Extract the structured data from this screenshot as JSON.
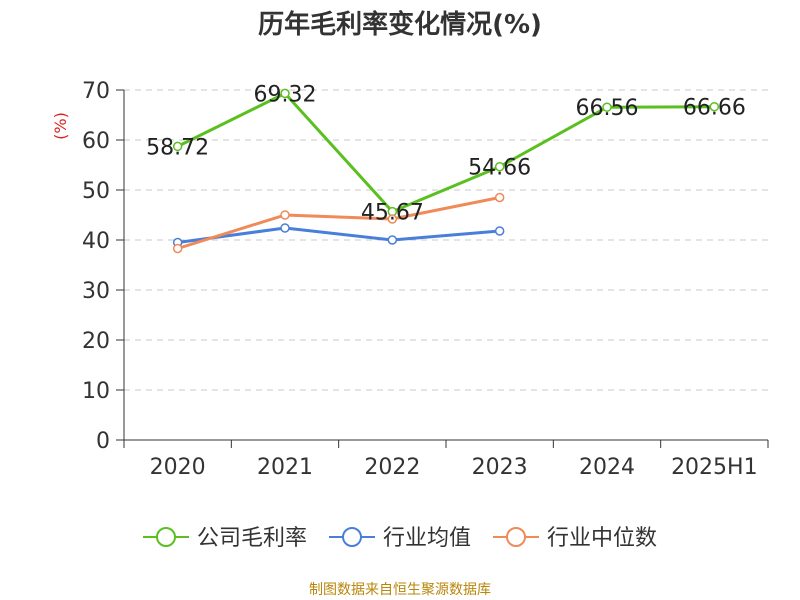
{
  "chart_data": {
    "type": "line",
    "title": "历年毛利率变化情况(%)",
    "ylabel": "(%)",
    "xlabel": "",
    "categories": [
      "2020",
      "2021",
      "2022",
      "2023",
      "2024",
      "2025H1"
    ],
    "ylim": [
      0,
      70
    ],
    "yticks": [
      0,
      10,
      20,
      30,
      40,
      50,
      60,
      70
    ],
    "grid": true,
    "legend_position": "bottom",
    "series": [
      {
        "name": "公司毛利率",
        "color": "#5ac01f",
        "values": [
          58.72,
          69.32,
          45.67,
          54.66,
          66.56,
          66.66
        ],
        "labels": [
          "58.72",
          "69.32",
          "45.67",
          "54.66",
          "66.56",
          "66.66"
        ]
      },
      {
        "name": "行业均值",
        "color": "#4a7fd9",
        "values": [
          39.5,
          42.4,
          40.0,
          41.8,
          null,
          null
        ]
      },
      {
        "name": "行业中位数",
        "color": "#f08a58",
        "values": [
          38.3,
          45.0,
          44.2,
          48.5,
          null,
          null
        ]
      }
    ]
  },
  "source": "制图数据来自恒生聚源数据库"
}
